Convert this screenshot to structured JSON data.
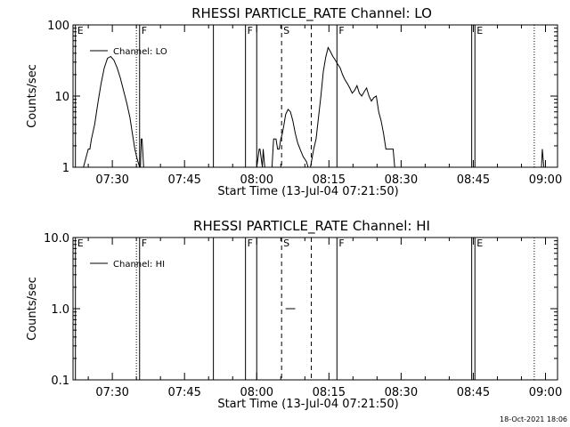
{
  "footer": {
    "stamp": "18-Oct-2021 18:06"
  },
  "chart_data": [
    {
      "type": "line",
      "title": "RHESSI PARTICLE_RATE Channel: LO",
      "xlabel": "Start Time (13-Jul-04 07:21:50)",
      "ylabel": "Counts/sec",
      "y_scale": "log",
      "ylim": [
        1,
        100
      ],
      "xlim": [
        "07:21:50",
        "09:02:30"
      ],
      "y_ticks": [
        "1",
        "10",
        "100"
      ],
      "x_ticks": [
        "07:30",
        "07:45",
        "08:00",
        "08:15",
        "08:30",
        "08:45",
        "09:00"
      ],
      "legend": {
        "placement": "top-left",
        "entries": [
          "Channel: LO"
        ]
      },
      "series": [
        {
          "name": "Channel: LO",
          "segments": [
            {
              "x": [
                "07:24:00",
                "07:25:00",
                "07:25:20",
                "07:25:40",
                "07:26:20",
                "07:27:00",
                "07:27:40",
                "07:28:20",
                "07:29:00",
                "07:29:40",
                "07:30:20",
                "07:31:00",
                "07:31:40",
                "07:32:20",
                "07:33:00",
                "07:33:40",
                "07:34:10",
                "07:34:40",
                "07:35:10",
                "07:35:40"
              ],
              "y": [
                1,
                1.8,
                1.8,
                2.5,
                4,
                8,
                15,
                25,
                34,
                36,
                32,
                25,
                18,
                12,
                8,
                5,
                3,
                1.8,
                1.3,
                1
              ]
            },
            {
              "x": [
                "07:35:50",
                "07:36:00",
                "07:36:10",
                "07:36:30"
              ],
              "y": [
                1,
                2.5,
                2.5,
                1
              ]
            },
            {
              "x": [
                "08:00:00",
                "08:00:30",
                "08:00:40",
                "08:01:10",
                "08:01:20",
                "08:01:40"
              ],
              "y": [
                1,
                1.8,
                1.8,
                1,
                1.8,
                1
              ]
            },
            {
              "x": [
                "08:03:10",
                "08:03:30",
                "08:04:00",
                "08:04:20",
                "08:04:40",
                "08:05:00",
                "08:05:20",
                "08:05:40",
                "08:06:00",
                "08:06:30",
                "08:07:00",
                "08:07:30",
                "08:08:00",
                "08:08:30",
                "08:09:00",
                "08:09:40",
                "08:10:20",
                "08:10:40"
              ],
              "y": [
                1,
                2.5,
                2.5,
                1.8,
                1.8,
                2.5,
                3,
                4,
                5.5,
                6.5,
                6,
                4.5,
                3,
                2.2,
                1.8,
                1.4,
                1.2,
                1
              ]
            },
            {
              "x": [
                "08:11:10",
                "08:11:50",
                "08:12:20",
                "08:12:50",
                "08:13:20",
                "08:13:50",
                "08:14:20",
                "08:14:50",
                "08:15:20",
                "08:15:50",
                "08:16:20",
                "08:16:50",
                "08:17:20",
                "08:17:50",
                "08:18:20",
                "08:18:50",
                "08:19:20",
                "08:19:50",
                "08:20:20",
                "08:20:50",
                "08:21:20",
                "08:21:50",
                "08:22:20",
                "08:22:50",
                "08:23:20",
                "08:23:50",
                "08:24:20",
                "08:24:50",
                "08:25:20",
                "08:25:50",
                "08:26:20",
                "08:26:50",
                "08:27:20",
                "08:27:50",
                "08:28:20",
                "08:28:40"
              ],
              "y": [
                1,
                1.8,
                2.5,
                5,
                10,
                22,
                35,
                48,
                42,
                36,
                32,
                28,
                25,
                20,
                17,
                15,
                13,
                11,
                12,
                14,
                11,
                10,
                11.5,
                13,
                10,
                8.5,
                9.5,
                10,
                6,
                4.5,
                3,
                1.8,
                1.8,
                1.8,
                1.8,
                1
              ]
            },
            {
              "x": [
                "08:59:10",
                "08:59:20",
                "08:59:40"
              ],
              "y": [
                1,
                1.8,
                1
              ]
            }
          ]
        }
      ],
      "annotations": [
        {
          "time": "07:22:20",
          "label": "E",
          "style": "solid"
        },
        {
          "time": "07:35:00",
          "label": "",
          "style": "dotted"
        },
        {
          "time": "07:35:40",
          "label": "F",
          "style": "solid"
        },
        {
          "time": "07:51:00",
          "label": "",
          "style": "solid"
        },
        {
          "time": "07:57:40",
          "label": "F",
          "style": "solid"
        },
        {
          "time": "08:00:00",
          "label": "",
          "style": "solid"
        },
        {
          "time": "08:05:10",
          "label": "S",
          "style": "dashed"
        },
        {
          "time": "08:11:20",
          "label": "",
          "style": "dashed"
        },
        {
          "time": "08:16:40",
          "label": "F",
          "style": "solid"
        },
        {
          "time": "08:44:40",
          "label": "",
          "style": "solid"
        },
        {
          "time": "08:45:20",
          "label": "E",
          "style": "solid"
        },
        {
          "time": "08:57:40",
          "label": "",
          "style": "dotted"
        }
      ]
    },
    {
      "type": "line",
      "title": "RHESSI PARTICLE_RATE Channel: HI",
      "xlabel": "Start Time (13-Jul-04 07:21:50)",
      "ylabel": "Counts/sec",
      "y_scale": "log",
      "ylim": [
        0.1,
        10
      ],
      "xlim": [
        "07:21:50",
        "09:02:30"
      ],
      "y_ticks": [
        "0.1",
        "1.0",
        "10.0"
      ],
      "x_ticks": [
        "07:30",
        "07:45",
        "08:00",
        "08:15",
        "08:30",
        "08:45",
        "09:00"
      ],
      "legend": {
        "placement": "top-left",
        "entries": [
          "Channel: HI"
        ]
      },
      "series": [
        {
          "name": "Channel: HI",
          "segments": [
            {
              "x": [
                "08:06:00",
                "08:08:00"
              ],
              "y": [
                1,
                1
              ]
            }
          ]
        }
      ],
      "annotations": [
        {
          "time": "07:22:20",
          "label": "E",
          "style": "solid"
        },
        {
          "time": "07:35:00",
          "label": "",
          "style": "dotted"
        },
        {
          "time": "07:35:40",
          "label": "F",
          "style": "solid"
        },
        {
          "time": "07:51:00",
          "label": "",
          "style": "solid"
        },
        {
          "time": "07:57:40",
          "label": "F",
          "style": "solid"
        },
        {
          "time": "08:00:00",
          "label": "",
          "style": "solid"
        },
        {
          "time": "08:05:10",
          "label": "S",
          "style": "dashed"
        },
        {
          "time": "08:11:20",
          "label": "",
          "style": "dashed"
        },
        {
          "time": "08:16:40",
          "label": "F",
          "style": "solid"
        },
        {
          "time": "08:44:40",
          "label": "",
          "style": "solid"
        },
        {
          "time": "08:45:20",
          "label": "E",
          "style": "solid"
        },
        {
          "time": "08:57:40",
          "label": "",
          "style": "dotted"
        }
      ]
    }
  ]
}
